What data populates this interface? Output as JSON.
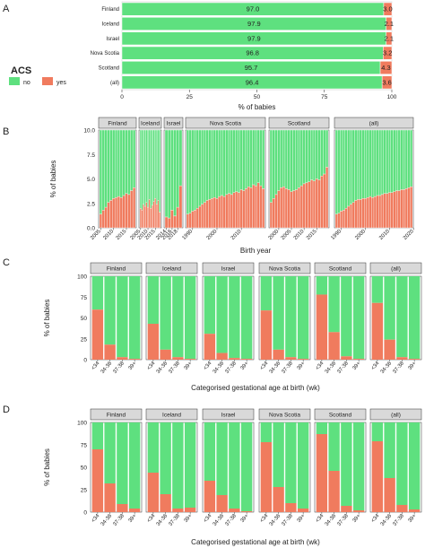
{
  "colors": {
    "no": "#5ee07f",
    "yes": "#f07b5e",
    "strip": "#d9d9d9",
    "grid": "#ebebeb",
    "bar_edge": "#ffffff"
  },
  "legend": {
    "title": "ACS",
    "items": [
      "no",
      "yes"
    ]
  },
  "facet_labels": [
    "Finland",
    "Iceland",
    "Israel",
    "Nova Scotia",
    "Scotland",
    "(all)"
  ],
  "chart_data": [
    {
      "panel": "A",
      "type": "bar",
      "orientation": "horizontal",
      "stacked": true,
      "categories": [
        "Finland",
        "Iceland",
        "Israel",
        "Nova Scotia",
        "Scotland",
        "(all)"
      ],
      "series": [
        {
          "name": "no",
          "values": [
            97.0,
            97.9,
            97.9,
            96.8,
            95.7,
            96.4
          ]
        },
        {
          "name": "yes",
          "values": [
            3.0,
            2.1,
            2.1,
            3.2,
            4.3,
            3.6
          ]
        }
      ],
      "data_labels_no": [
        "97.0",
        "97.9",
        "97.9",
        "96.8",
        "95.7",
        "96.4"
      ],
      "data_labels_yes": [
        "3.0",
        "2.1",
        "2.1",
        "3.2",
        "4.3",
        "3.6"
      ],
      "xlabel": "% of babies",
      "xlim": [
        0,
        100
      ],
      "xticks": [
        "0",
        "25",
        "50",
        "75",
        "100"
      ]
    },
    {
      "panel": "B",
      "type": "bar",
      "stacked": true,
      "ylabel": "% of babies",
      "xlabel": "Birth year",
      "ylim": [
        0,
        10
      ],
      "yticks": [
        "0.0",
        "2.5",
        "5.0",
        "7.5",
        "10.0"
      ],
      "facets": [
        {
          "label": "Finland",
          "start": 2005,
          "end": 2018,
          "ticks": [
            "2005",
            "2010",
            "2015"
          ],
          "yes": [
            1.4,
            1.8,
            2.1,
            2.6,
            2.8,
            3.0,
            3.1,
            3.2,
            3.1,
            3.3,
            3.5,
            3.4,
            3.8,
            4.1
          ]
        },
        {
          "label": "Iceland",
          "start": 2005,
          "end": 2018,
          "ticks": [
            "2005",
            "2010",
            "2015"
          ],
          "yes": [
            2.0,
            1.8,
            2.4,
            2.2,
            2.6,
            2.1,
            2.9,
            2.0,
            2.3,
            2.7,
            3.0,
            2.4,
            2.8,
            1.6
          ]
        },
        {
          "label": "Israel",
          "start": 2014,
          "end": 2019,
          "ticks": [
            "2014",
            "2016",
            "2018"
          ],
          "yes": [
            1.1,
            1.0,
            1.8,
            1.2,
            2.1,
            4.3
          ]
        },
        {
          "label": "Nova Scotia",
          "start": 1988,
          "end": 2019,
          "ticks": [
            "1990",
            "2000",
            "2010"
          ],
          "yes": [
            1.4,
            1.5,
            1.7,
            1.8,
            2.0,
            2.2,
            2.4,
            2.6,
            2.8,
            2.9,
            3.0,
            3.1,
            3.0,
            3.2,
            3.3,
            3.2,
            3.4,
            3.5,
            3.4,
            3.6,
            3.7,
            3.6,
            3.9,
            3.8,
            4.0,
            4.2,
            4.1,
            4.4,
            4.3,
            4.6,
            4.3,
            4.0
          ]
        },
        {
          "label": "Scotland",
          "start": 1997,
          "end": 2019,
          "ticks": [
            "2000",
            "2005",
            "2010",
            "2015"
          ],
          "yes": [
            2.6,
            3.0,
            3.4,
            3.8,
            4.1,
            4.2,
            4.0,
            3.9,
            3.7,
            3.8,
            3.9,
            4.1,
            4.3,
            4.5,
            4.6,
            4.7,
            4.9,
            4.8,
            5.0,
            4.9,
            5.3,
            5.5,
            6.2
          ]
        },
        {
          "label": "(all)",
          "start": 1988,
          "end": 2019,
          "ticks": [
            "1990",
            "2000",
            "2010",
            "2020"
          ],
          "yes": [
            1.4,
            1.5,
            1.7,
            1.8,
            2.0,
            2.2,
            2.4,
            2.6,
            2.8,
            2.9,
            2.9,
            3.0,
            3.0,
            3.1,
            3.2,
            3.1,
            3.2,
            3.3,
            3.3,
            3.4,
            3.5,
            3.5,
            3.6,
            3.6,
            3.7,
            3.8,
            3.8,
            3.9,
            3.9,
            4.0,
            4.1,
            4.2
          ]
        }
      ]
    },
    {
      "panel": "C",
      "type": "bar",
      "stacked": true,
      "ylabel": "% of babies",
      "xlabel": "Categorised gestational age at birth (wk)",
      "ylim": [
        0,
        100
      ],
      "yticks": [
        "0",
        "25",
        "50",
        "75",
        "100"
      ],
      "categories": [
        "<34",
        "34-36",
        "37-38",
        "39+"
      ],
      "facets": [
        {
          "label": "Finland",
          "yes": [
            60,
            18,
            3,
            1
          ]
        },
        {
          "label": "Iceland",
          "yes": [
            43,
            12,
            3,
            1
          ]
        },
        {
          "label": "Israel",
          "yes": [
            31,
            8,
            2,
            1
          ]
        },
        {
          "label": "Nova Scotia",
          "yes": [
            59,
            12,
            3,
            1
          ]
        },
        {
          "label": "Scotland",
          "yes": [
            78,
            33,
            4,
            1
          ]
        },
        {
          "label": "(all)",
          "yes": [
            68,
            24,
            3,
            1
          ]
        }
      ]
    },
    {
      "panel": "D",
      "type": "bar",
      "stacked": true,
      "ylabel": "% of babies",
      "xlabel": "Categorised gestational age at birth (wk)",
      "ylim": [
        0,
        100
      ],
      "yticks": [
        "0",
        "25",
        "50",
        "75",
        "100"
      ],
      "categories": [
        "<34",
        "34-36",
        "37-38",
        "39+"
      ],
      "facets": [
        {
          "label": "Finland",
          "yes": [
            70,
            32,
            9,
            4
          ]
        },
        {
          "label": "Iceland",
          "yes": [
            44,
            20,
            4,
            5
          ]
        },
        {
          "label": "Israel",
          "yes": [
            35,
            19,
            4,
            1
          ]
        },
        {
          "label": "Nova Scotia",
          "yes": [
            78,
            28,
            10,
            4
          ]
        },
        {
          "label": "Scotland",
          "yes": [
            87,
            46,
            7,
            2
          ]
        },
        {
          "label": "(all)",
          "yes": [
            79,
            38,
            8,
            3
          ]
        }
      ]
    }
  ]
}
